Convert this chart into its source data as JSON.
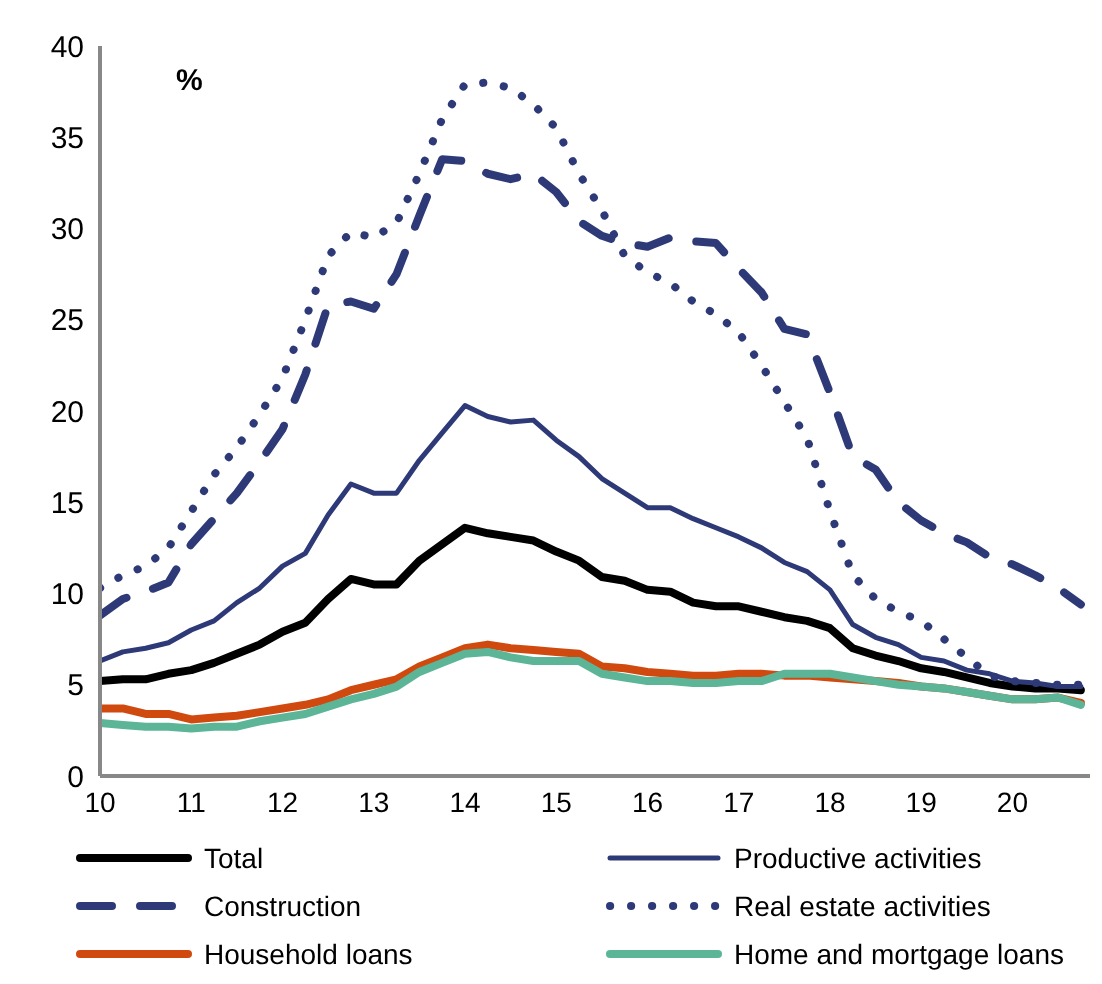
{
  "chart_data": {
    "type": "line",
    "annotations": [
      "%"
    ],
    "x": [
      10,
      10.25,
      10.5,
      10.75,
      11,
      11.25,
      11.5,
      11.75,
      12,
      12.25,
      12.5,
      12.75,
      13,
      13.25,
      13.5,
      13.75,
      14,
      14.25,
      14.5,
      14.75,
      15,
      15.25,
      15.5,
      15.75,
      16,
      16.25,
      16.5,
      16.75,
      17,
      17.25,
      17.5,
      17.75,
      18,
      18.25,
      18.5,
      18.75,
      19,
      19.25,
      19.5,
      19.75,
      20,
      20.25,
      20.5,
      20.75
    ],
    "xlim": [
      10,
      20.85
    ],
    "xticks": [
      10,
      11,
      12,
      13,
      14,
      15,
      16,
      17,
      18,
      19,
      20
    ],
    "ylim": [
      0,
      40
    ],
    "yticks": [
      0,
      5,
      10,
      15,
      20,
      25,
      30,
      35,
      40
    ],
    "grid": false,
    "legend": "bottom",
    "marker": "none",
    "series": [
      {
        "name": "Total",
        "color": "#000000",
        "line_style": "solid",
        "values": [
          5.2,
          5.3,
          5.3,
          5.6,
          5.8,
          6.2,
          6.7,
          7.2,
          7.9,
          8.4,
          9.7,
          10.8,
          10.5,
          10.5,
          11.8,
          12.7,
          13.6,
          13.3,
          13.1,
          12.9,
          12.3,
          11.8,
          10.9,
          10.7,
          10.2,
          10.1,
          9.5,
          9.3,
          9.3,
          9.0,
          8.7,
          8.5,
          8.1,
          7.0,
          6.6,
          6.3,
          5.9,
          5.7,
          5.4,
          5.1,
          4.9,
          4.8,
          4.8,
          4.7
        ]
      },
      {
        "name": "Productive activities",
        "color": "#2e3a78",
        "line_style": "solid",
        "values": [
          6.3,
          6.8,
          7.0,
          7.3,
          8.0,
          8.5,
          9.5,
          10.3,
          11.5,
          12.2,
          14.3,
          16.0,
          15.5,
          15.5,
          17.3,
          18.8,
          20.3,
          19.7,
          19.4,
          19.5,
          18.4,
          17.5,
          16.3,
          15.5,
          14.7,
          14.7,
          14.1,
          13.6,
          13.1,
          12.5,
          11.7,
          11.2,
          10.2,
          8.3,
          7.6,
          7.2,
          6.5,
          6.3,
          5.8,
          5.6,
          5.2,
          5.1,
          4.9,
          4.9
        ]
      },
      {
        "name": "Construction",
        "color": "#2e3a78",
        "line_style": "dashed",
        "values": [
          8.8,
          9.7,
          10.1,
          10.6,
          12.7,
          14.1,
          15.5,
          17.2,
          19.0,
          22.0,
          25.8,
          26.0,
          25.6,
          27.5,
          30.7,
          33.8,
          33.7,
          33.0,
          32.7,
          33.0,
          32.0,
          30.4,
          29.6,
          29.2,
          29.0,
          29.5,
          29.3,
          29.2,
          27.8,
          26.5,
          24.5,
          24.2,
          21.0,
          17.5,
          16.8,
          15.0,
          14.0,
          13.3,
          12.8,
          12.0,
          11.6,
          11.0,
          10.3,
          9.4
        ]
      },
      {
        "name": "Real estate activities",
        "color": "#2e3a78",
        "line_style": "dotted",
        "values": [
          10.3,
          11.0,
          11.5,
          12.5,
          14.5,
          16.5,
          18.0,
          19.8,
          21.8,
          25.0,
          28.5,
          29.8,
          29.5,
          30.3,
          33.0,
          36.0,
          37.9,
          38.0,
          37.7,
          36.8,
          35.5,
          33.0,
          31.0,
          28.5,
          27.6,
          27.0,
          26.0,
          25.3,
          24.3,
          22.5,
          20.5,
          18.5,
          14.5,
          11.0,
          9.7,
          9.0,
          8.5,
          7.5,
          6.5,
          5.5,
          5.2,
          5.1,
          5.0,
          5.0
        ]
      },
      {
        "name": "Household loans",
        "color": "#d04a10",
        "line_style": "solid",
        "values": [
          3.7,
          3.7,
          3.4,
          3.4,
          3.1,
          3.2,
          3.3,
          3.5,
          3.7,
          3.9,
          4.2,
          4.7,
          5.0,
          5.3,
          6.0,
          6.5,
          7.0,
          7.2,
          7.0,
          6.9,
          6.8,
          6.7,
          6.0,
          5.9,
          5.7,
          5.6,
          5.5,
          5.5,
          5.6,
          5.6,
          5.5,
          5.5,
          5.4,
          5.3,
          5.2,
          5.1,
          4.9,
          4.8,
          4.6,
          4.4,
          4.2,
          4.2,
          4.3,
          4.0
        ]
      },
      {
        "name": "Home and mortgage loans",
        "color": "#5bb596",
        "line_style": "solid",
        "values": [
          2.9,
          2.8,
          2.7,
          2.7,
          2.6,
          2.7,
          2.7,
          3.0,
          3.2,
          3.4,
          3.8,
          4.2,
          4.5,
          4.9,
          5.7,
          6.2,
          6.7,
          6.8,
          6.5,
          6.3,
          6.3,
          6.3,
          5.6,
          5.4,
          5.2,
          5.2,
          5.1,
          5.1,
          5.2,
          5.2,
          5.6,
          5.6,
          5.6,
          5.4,
          5.2,
          5.0,
          4.9,
          4.8,
          4.6,
          4.4,
          4.2,
          4.2,
          4.3,
          3.9
        ]
      }
    ]
  }
}
